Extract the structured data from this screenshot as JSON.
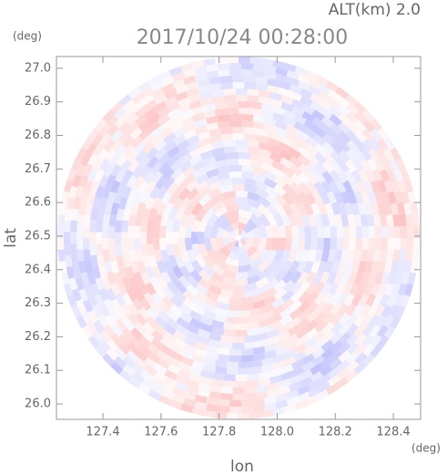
{
  "chart_data": {
    "type": "radar-ppi",
    "title": "2017/10/24 00:28:00",
    "subtitle": "ALT(km) 2.0",
    "x_label": "lon",
    "y_label": "lat",
    "x_unit": "(deg)",
    "y_unit": "(deg)",
    "xlim": [
      127.24,
      128.494
    ],
    "ylim": [
      25.954,
      27.035
    ],
    "xticks": [
      127.4,
      127.6,
      127.8,
      {
        "value": 128.0,
        "label": "128.0"
      },
      128.2,
      128.4
    ],
    "yticks": [
      {
        "value": 26.0,
        "label": "26.0"
      },
      26.1,
      26.2,
      26.3,
      26.4,
      26.5,
      26.6,
      26.7,
      26.8,
      26.9,
      {
        "value": 27.0,
        "label": "27.0"
      }
    ]
  }
}
